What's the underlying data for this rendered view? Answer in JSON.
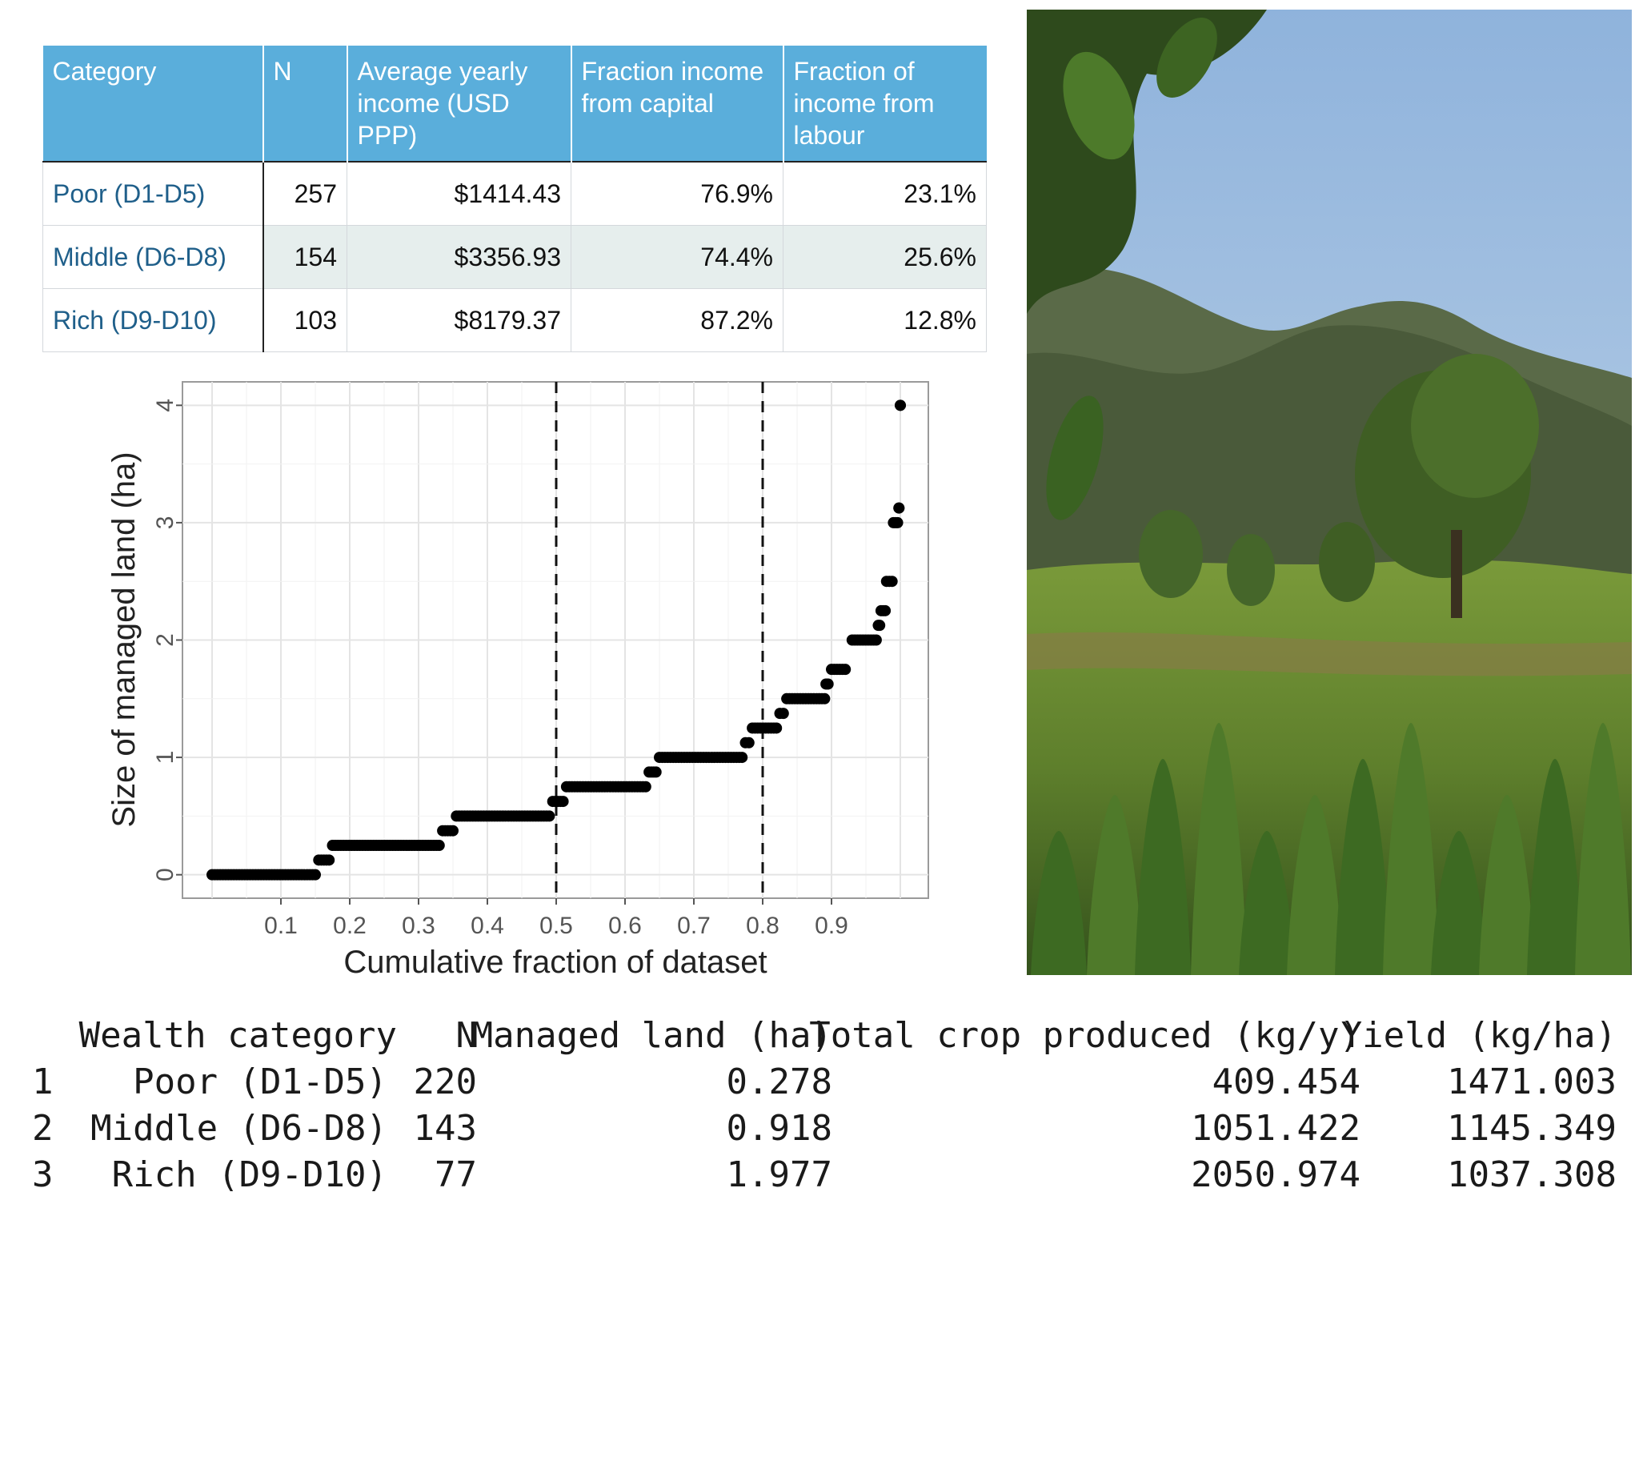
{
  "income_table": {
    "headers": [
      "Category",
      "N",
      "Average yearly income (USD PPP)",
      "Fraction income from capital",
      "Fraction of income from labour"
    ],
    "rows": [
      {
        "category": "Poor (D1-D5)",
        "n": "257",
        "income": "$1414.43",
        "capital": "76.9%",
        "labour": "23.1%"
      },
      {
        "category": "Middle (D6-D8)",
        "n": "154",
        "income": "$3356.93",
        "capital": "74.4%",
        "labour": "25.6%"
      },
      {
        "category": "Rich (D9-D10)",
        "n": "103",
        "income": "$8179.37",
        "capital": "87.2%",
        "labour": "12.8%"
      }
    ]
  },
  "chart_data": {
    "type": "scatter",
    "xlabel": "Cumulative fraction of dataset",
    "ylabel": "Size of managed land (ha)",
    "xlim": [
      0,
      1.0
    ],
    "ylim": [
      -0.2,
      4.2
    ],
    "xticks": [
      "0.1",
      "0.2",
      "0.3",
      "0.4",
      "0.5",
      "0.6",
      "0.7",
      "0.8",
      "0.9"
    ],
    "yticks": [
      "0",
      "1",
      "2",
      "3",
      "4"
    ],
    "grid": true,
    "vlines": [
      0.5,
      0.8
    ],
    "steps": [
      {
        "from": 0.0,
        "to": 0.15,
        "y": 0
      },
      {
        "from": 0.155,
        "to": 0.17,
        "y": 0.125
      },
      {
        "from": 0.175,
        "to": 0.33,
        "y": 0.25
      },
      {
        "from": 0.335,
        "to": 0.35,
        "y": 0.375
      },
      {
        "from": 0.355,
        "to": 0.49,
        "y": 0.5
      },
      {
        "from": 0.495,
        "to": 0.51,
        "y": 0.625
      },
      {
        "from": 0.515,
        "to": 0.63,
        "y": 0.75
      },
      {
        "from": 0.635,
        "to": 0.645,
        "y": 0.875
      },
      {
        "from": 0.65,
        "to": 0.77,
        "y": 1.0
      },
      {
        "from": 0.775,
        "to": 0.78,
        "y": 1.125
      },
      {
        "from": 0.785,
        "to": 0.82,
        "y": 1.25
      },
      {
        "from": 0.825,
        "to": 0.83,
        "y": 1.375
      },
      {
        "from": 0.835,
        "to": 0.89,
        "y": 1.5
      },
      {
        "from": 0.892,
        "to": 0.895,
        "y": 1.625
      },
      {
        "from": 0.9,
        "to": 0.92,
        "y": 1.75
      },
      {
        "from": 0.93,
        "to": 0.965,
        "y": 2.0
      },
      {
        "from": 0.968,
        "to": 0.97,
        "y": 2.125
      },
      {
        "from": 0.972,
        "to": 0.978,
        "y": 2.25
      },
      {
        "from": 0.98,
        "to": 0.988,
        "y": 2.5
      },
      {
        "from": 0.99,
        "to": 0.996,
        "y": 3.0
      },
      {
        "from": 0.998,
        "to": 0.998,
        "y": 3.125
      },
      {
        "from": 1.0,
        "to": 1.0,
        "y": 4.0
      }
    ]
  },
  "photo": {
    "sky_top": "#8fb3dc",
    "sky_bottom": "#c9daea",
    "hills": "#4a5a3a",
    "vegetation": "#4f7a2a"
  },
  "console_table": {
    "headers": [
      "Wealth category",
      "N",
      "Managed land (ha)",
      "Total crop produced (kg/y)",
      "Yield (kg/ha)"
    ],
    "rows": [
      {
        "idx": "1",
        "category": "Poor (D1-D5)",
        "n": "220",
        "land": "0.278",
        "crop": "409.454",
        "yield": "1471.003"
      },
      {
        "idx": "2",
        "category": "Middle (D6-D8)",
        "n": "143",
        "land": "0.918",
        "crop": "1051.422",
        "yield": "1145.349"
      },
      {
        "idx": "3",
        "category": "Rich (D9-D10)",
        "n": "77",
        "land": "1.977",
        "crop": "2050.974",
        "yield": "1037.308"
      }
    ]
  }
}
